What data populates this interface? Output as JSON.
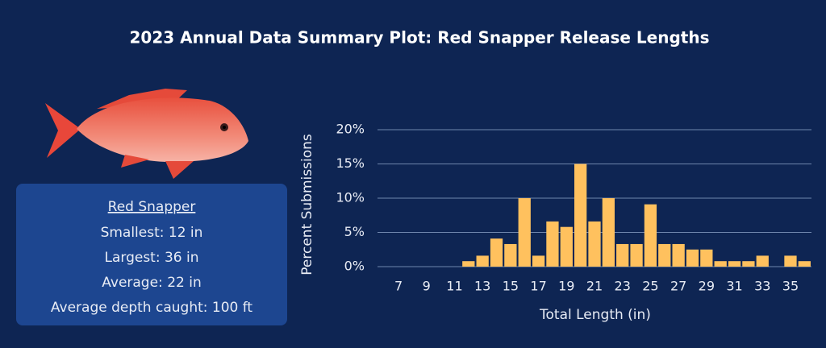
{
  "chart_data": {
    "type": "bar",
    "title": "2023 Annual Data Summary Plot: Red Snapper Release Lengths",
    "x_label": "Total Length (in)",
    "y_label": "Percent Submissions",
    "x": [
      7,
      8,
      9,
      10,
      11,
      12,
      13,
      14,
      15,
      16,
      17,
      18,
      19,
      20,
      21,
      22,
      23,
      24,
      25,
      26,
      27,
      28,
      29,
      30,
      31,
      32,
      33,
      34,
      35,
      36
    ],
    "values": [
      0,
      0,
      0,
      0,
      0,
      0.8,
      1.6,
      4.1,
      3.3,
      10,
      1.6,
      6.6,
      5.8,
      15,
      6.6,
      10,
      3.3,
      3.3,
      9.1,
      3.3,
      3.3,
      2.5,
      2.5,
      0.8,
      0.8,
      0.8,
      1.6,
      0,
      1.6,
      0.8
    ],
    "color": "#ffc15e",
    "xlim": [
      5.5,
      36.5
    ],
    "xticks": [
      7,
      9,
      11,
      13,
      15,
      17,
      19,
      21,
      23,
      25,
      27,
      29,
      31,
      33,
      35
    ],
    "ylim": [
      0,
      20
    ],
    "yticks": [
      {
        "value": 0,
        "label": "0%"
      },
      {
        "value": 5,
        "label": "5%"
      },
      {
        "value": 10,
        "label": "10%"
      },
      {
        "value": 15,
        "label": "15%"
      },
      {
        "value": 20,
        "label": "20%"
      }
    ],
    "grid": true
  },
  "info": {
    "heading": "Red Snapper",
    "lines": [
      "Smallest: 12 in",
      "Largest: 36 in",
      "Average: 22 in",
      "Average depth caught: 100 ft"
    ]
  }
}
